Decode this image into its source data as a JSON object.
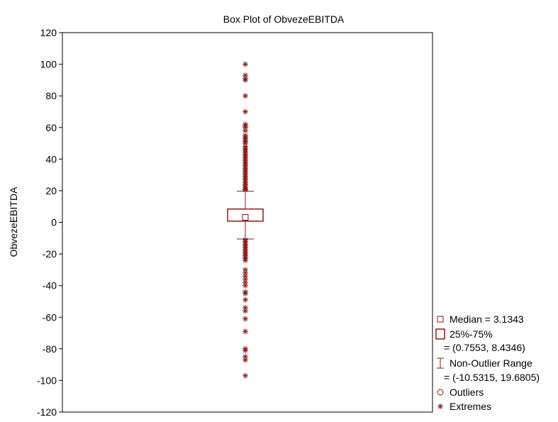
{
  "chart_data": {
    "type": "box",
    "title": "Box Plot of ObvezeEBITDA",
    "xlabel": "",
    "ylabel": "ObvezeEBITDA",
    "ylim": [
      -120,
      120
    ],
    "yticks": [
      120,
      100,
      80,
      60,
      40,
      20,
      0,
      -20,
      -40,
      -60,
      -80,
      -100,
      -120
    ],
    "grid": false,
    "series": [
      {
        "name": "ObvezeEBITDA",
        "median": 3.1343,
        "q1": 0.7553,
        "q3": 8.4346,
        "whisker_low": -10.5315,
        "whisker_high": 19.6805,
        "outliers": [],
        "extremes": [
          100,
          93,
          91,
          90,
          80,
          70,
          62,
          61,
          60,
          58,
          55,
          54,
          53,
          52,
          51,
          50,
          48,
          47,
          46,
          45,
          44,
          43,
          42,
          41,
          40,
          39,
          38,
          37,
          36,
          35,
          34,
          33,
          32,
          31,
          30,
          29,
          28,
          27,
          26,
          25,
          24,
          23,
          22,
          21,
          20.5,
          -11,
          -12,
          -13,
          -14,
          -15,
          -16,
          -17,
          -18,
          -19,
          -20,
          -21,
          -22,
          -23,
          -24,
          -30,
          -32,
          -34,
          -36,
          -38,
          -40,
          -44,
          -45,
          -49,
          -54,
          -56,
          -61,
          -69,
          -80,
          -81,
          -85,
          -87,
          -97
        ],
        "color": "#8b1a1a"
      }
    ],
    "legend": {
      "position": "bottom-right",
      "entries": [
        {
          "symbol": "small-square",
          "text": "Median = 3.1343"
        },
        {
          "symbol": "box",
          "text": "25%-75%"
        },
        {
          "symbol": "none",
          "text": "= (0.7553, 8.4346)"
        },
        {
          "symbol": "whisker",
          "text": "Non-Outlier Range"
        },
        {
          "symbol": "none",
          "text": "= (-10.5315, 19.6805)"
        },
        {
          "symbol": "circle",
          "text": "Outliers"
        },
        {
          "symbol": "asterisk",
          "text": "Extremes"
        }
      ]
    }
  }
}
